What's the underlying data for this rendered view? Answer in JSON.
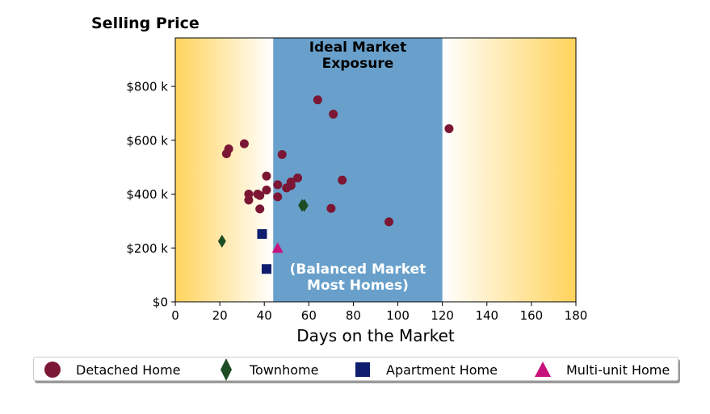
{
  "chart_data": {
    "type": "scatter",
    "title": "Selling Price",
    "xlabel": "Days on the Market",
    "ylabel": "",
    "xlim": [
      0,
      180
    ],
    "ylim": [
      0,
      980000
    ],
    "x_ticks": [
      0,
      20,
      40,
      60,
      80,
      100,
      120,
      140,
      160,
      180
    ],
    "x_tick_labels": [
      "0",
      "20",
      "40",
      "60",
      "80",
      "100",
      "120",
      "140",
      "160",
      "180"
    ],
    "y_ticks": [
      0,
      200000,
      400000,
      600000,
      800000
    ],
    "y_tick_labels": [
      "$0",
      "$200 k",
      "$400 k",
      "$600 k",
      "$800 k"
    ],
    "grid": false,
    "legend_position": "bottom",
    "highlight_band": {
      "x_range": [
        44,
        120
      ],
      "top_label": "Ideal Market\nExposure",
      "bottom_label": "(Balanced Market\nMost Homes)",
      "color": "#68a0cb"
    },
    "background_gradient_color": "#ffd35c",
    "series": [
      {
        "name": "Detached Home",
        "marker": "circle",
        "color": "#7b1734",
        "points": [
          [
            23,
            550000
          ],
          [
            24,
            568000
          ],
          [
            31,
            587000
          ],
          [
            33,
            400000
          ],
          [
            33,
            378000
          ],
          [
            37,
            400000
          ],
          [
            38,
            395000
          ],
          [
            38,
            345000
          ],
          [
            41,
            467000
          ],
          [
            41,
            415000
          ],
          [
            46,
            435000
          ],
          [
            46,
            390000
          ],
          [
            48,
            547000
          ],
          [
            50,
            423000
          ],
          [
            52,
            445000
          ],
          [
            52,
            432000
          ],
          [
            55,
            460000
          ],
          [
            64,
            750000
          ],
          [
            70,
            347000
          ],
          [
            71,
            697000
          ],
          [
            75,
            452000
          ],
          [
            96,
            297000
          ],
          [
            123,
            643000
          ]
        ]
      },
      {
        "name": "Townhome",
        "marker": "diamond",
        "color": "#1c4d24",
        "points": [
          [
            21,
            225000
          ],
          [
            57,
            358000
          ],
          [
            58,
            358000
          ]
        ]
      },
      {
        "name": "Apartment Home",
        "marker": "square",
        "color": "#0e1d6e",
        "points": [
          [
            39,
            252000
          ],
          [
            41,
            122000
          ]
        ]
      },
      {
        "name": "Multi-unit Home",
        "marker": "triangle",
        "color": "#c8127b",
        "points": [
          [
            46,
            200000
          ]
        ]
      }
    ]
  }
}
